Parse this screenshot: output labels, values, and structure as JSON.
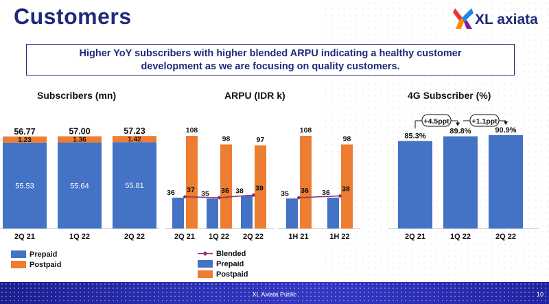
{
  "header": {
    "title": "Customers",
    "logo_text": "XL axiata"
  },
  "headline": {
    "line1": "Higher YoY subscribers with higher blended ARPU indicating a healthy customer",
    "line2": "development as we are focusing on quality customers."
  },
  "colors": {
    "prepaid": "#4472c4",
    "postpaid": "#ed7d31",
    "blended": "#8b2d6b",
    "title": "#1e2a78"
  },
  "chart_data": [
    {
      "type": "bar",
      "title": "Subscribers (mn)",
      "categories": [
        "2Q 21",
        "1Q 22",
        "2Q 22"
      ],
      "series": [
        {
          "name": "Prepaid",
          "values": [
            55.53,
            55.64,
            55.81
          ],
          "labels": [
            "55.53",
            "55.64",
            "55.81"
          ]
        },
        {
          "name": "Postpaid",
          "values": [
            1.23,
            1.36,
            1.42
          ],
          "labels": [
            "1.23",
            "1.36",
            "1.42"
          ]
        }
      ],
      "totals": [
        "56.77",
        "57.00",
        "57.23"
      ],
      "stacked": true,
      "legend": [
        "Prepaid",
        "Postpaid"
      ],
      "legend_position": "bottom-left"
    },
    {
      "type": "bar",
      "title": "ARPU (IDR k)",
      "groups": [
        {
          "categories": [
            "2Q 21",
            "1Q 22",
            "2Q 22"
          ],
          "prepaid": [
            36,
            35,
            38
          ],
          "blended": [
            37,
            36,
            39
          ],
          "postpaid": [
            108,
            98,
            97
          ]
        },
        {
          "categories": [
            "1H 21",
            "1H 22"
          ],
          "prepaid": [
            35,
            36
          ],
          "blended": [
            36,
            38
          ],
          "postpaid": [
            108,
            98
          ]
        }
      ],
      "legend": [
        "Blended",
        "Prepaid",
        "Postpaid"
      ],
      "legend_position": "bottom"
    },
    {
      "type": "bar",
      "title": "4G Subscriber (%)",
      "categories": [
        "2Q 21",
        "1Q 22",
        "2Q 22"
      ],
      "values": [
        85.3,
        89.8,
        90.9
      ],
      "labels": [
        "85.3%",
        "89.8%",
        "90.9%"
      ],
      "annotations": [
        "+4.5ppt",
        "+1.1ppt"
      ]
    }
  ],
  "footer": {
    "classification": "XL Axiata Public",
    "page": "10"
  }
}
